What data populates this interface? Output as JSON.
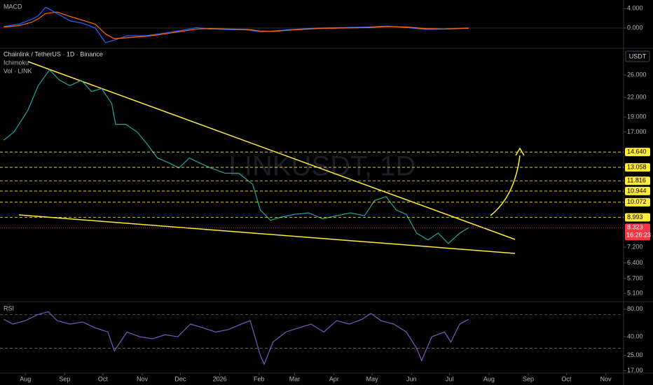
{
  "chart_data": [
    {
      "type": "line",
      "pane": "macd",
      "label": "MACD",
      "ylim": [
        -3.9,
        5.5
      ],
      "yticks": [
        {
          "value": 4,
          "label": "4.000"
        },
        {
          "value": 0,
          "label": "0.000"
        }
      ],
      "series": [
        {
          "color": "#2962ff",
          "x": [
            -17,
            -5,
            5,
            10,
            16,
            25,
            35,
            45,
            55,
            63,
            70,
            80,
            95,
            105,
            115,
            125,
            135,
            145,
            160,
            175,
            185,
            195,
            210,
            230,
            250,
            270,
            285,
            300,
            315,
            330,
            349
          ],
          "values": [
            0.3,
            0.8,
            1.8,
            2.5,
            4.3,
            3,
            1.5,
            1,
            0,
            -3,
            -2.5,
            -1.6,
            -1.6,
            -1.2,
            -0.8,
            -0.4,
            0.1,
            -0.2,
            -0.3,
            -0.4,
            -0.8,
            -0.6,
            -0.3,
            0,
            0.1,
            0.2,
            0.4,
            0.1,
            -0.3,
            -0.2,
            0.05
          ]
        },
        {
          "color": "#ff6d00",
          "x": [
            -17,
            -5,
            5,
            10,
            16,
            25,
            35,
            45,
            55,
            63,
            70,
            80,
            95,
            105,
            115,
            125,
            135,
            145,
            160,
            175,
            185,
            195,
            210,
            230,
            250,
            270,
            285,
            300,
            315,
            330,
            349
          ],
          "values": [
            0.2,
            0.5,
            1.2,
            1.9,
            3,
            3.3,
            2.4,
            1.6,
            0.8,
            -1.2,
            -2.2,
            -2,
            -1.7,
            -1.4,
            -1,
            -0.6,
            -0.2,
            -0.1,
            -0.2,
            -0.3,
            -0.6,
            -0.7,
            -0.4,
            -0.1,
            0,
            0.1,
            0.3,
            0.2,
            -0.1,
            -0.2,
            -0.05
          ]
        }
      ]
    },
    {
      "type": "line",
      "pane": "price",
      "title": "Chainlink / TetherUS · 1D · Binance",
      "indicators": [
        "Ichimoku",
        "Vol · LINK"
      ],
      "watermark": "LINKUSDT, 1D",
      "currency": "USDT",
      "log_scale": true,
      "grid": false,
      "color": "#26a69a",
      "xlim": [
        -20,
        471
      ],
      "ylim": [
        4.82,
        31.4
      ],
      "xticks": [
        {
          "value": 0,
          "label": "Aug"
        },
        {
          "value": 31,
          "label": "Sep"
        },
        {
          "value": 61,
          "label": "Oct"
        },
        {
          "value": 92,
          "label": "Nov"
        },
        {
          "value": 122,
          "label": "Dec"
        },
        {
          "value": 153,
          "label": "2026"
        },
        {
          "value": 184,
          "label": "Feb"
        },
        {
          "value": 212,
          "label": "Mar"
        },
        {
          "value": 243,
          "label": "Apr"
        },
        {
          "value": 273,
          "label": "May"
        },
        {
          "value": 304,
          "label": "Jun"
        },
        {
          "value": 334,
          "label": "Jul"
        },
        {
          "value": 365,
          "label": "Aug"
        },
        {
          "value": 396,
          "label": "Sep"
        },
        {
          "value": 426,
          "label": "Oct"
        },
        {
          "value": 457,
          "label": "Nov"
        }
      ],
      "yticks": [
        {
          "value": 26,
          "label": "26.000"
        },
        {
          "value": 22,
          "label": "22.000"
        },
        {
          "value": 19,
          "label": "19.000"
        },
        {
          "value": 17,
          "label": "17.000"
        },
        {
          "value": 7.2,
          "label": "7.200"
        },
        {
          "value": 6.4,
          "label": "6.400"
        },
        {
          "value": 5.7,
          "label": "5.700"
        },
        {
          "value": 5.1,
          "label": "5.100"
        }
      ],
      "levels": [
        {
          "value": 14.64,
          "label": "14.640"
        },
        {
          "value": 13.058,
          "label": "13.058"
        },
        {
          "value": 11.816,
          "label": "11.816"
        },
        {
          "value": 10.944,
          "label": "10.944"
        },
        {
          "value": 10.072,
          "label": "10.072"
        },
        {
          "value": 8.993,
          "label": "8.993"
        }
      ],
      "level_color": "#ffeb3b",
      "last_price": 8.323,
      "countdown": "16:26:23",
      "x": [
        -17,
        -9,
        2,
        10,
        19,
        27,
        35,
        44,
        52,
        60,
        68,
        71,
        79,
        88,
        96,
        104,
        113,
        121,
        129,
        137,
        146,
        157,
        168,
        179,
        185,
        193,
        201,
        212,
        223,
        234,
        245,
        256,
        267,
        275,
        284,
        292,
        300,
        308,
        317,
        325,
        333,
        342,
        349
      ],
      "values": [
        16,
        17,
        20,
        24,
        27,
        25,
        24,
        25,
        23,
        23.5,
        21,
        18,
        18,
        17,
        15.5,
        14,
        13.5,
        13,
        14,
        13.5,
        13,
        12.5,
        12.5,
        11.5,
        9.5,
        8.8,
        9,
        9.2,
        9.3,
        8.9,
        9.1,
        9.3,
        9.1,
        10.2,
        10.5,
        9.5,
        9.2,
        8,
        7.6,
        8,
        7.4,
        8,
        8.323
      ]
    },
    {
      "type": "line",
      "pane": "rsi",
      "label": "RSI",
      "log_scale": true,
      "ylim": [
        16,
        95
      ],
      "yticks": [
        {
          "value": 80,
          "label": "80.00"
        },
        {
          "value": 40,
          "label": "40.00"
        },
        {
          "value": 25,
          "label": "25.00"
        },
        {
          "value": 17,
          "label": "17.00"
        }
      ],
      "bands": [
        70,
        30
      ],
      "series": [
        {
          "color": "#7e57c2",
          "x": [
            -17,
            -10,
            0,
            10,
            18,
            25,
            35,
            45,
            55,
            65,
            70,
            80,
            90,
            100,
            110,
            120,
            130,
            140,
            150,
            160,
            170,
            177,
            185,
            188,
            195,
            205,
            215,
            225,
            235,
            245,
            255,
            265,
            272,
            280,
            290,
            300,
            308,
            312,
            320,
            330,
            335,
            342,
            349
          ],
          "values": [
            62,
            55,
            60,
            70,
            75,
            60,
            55,
            58,
            50,
            45,
            28,
            45,
            40,
            38,
            42,
            40,
            55,
            50,
            45,
            48,
            55,
            60,
            25,
            20,
            35,
            45,
            50,
            55,
            45,
            60,
            55,
            62,
            72,
            60,
            55,
            45,
            30,
            22,
            40,
            45,
            35,
            55,
            62
          ]
        }
      ]
    }
  ]
}
